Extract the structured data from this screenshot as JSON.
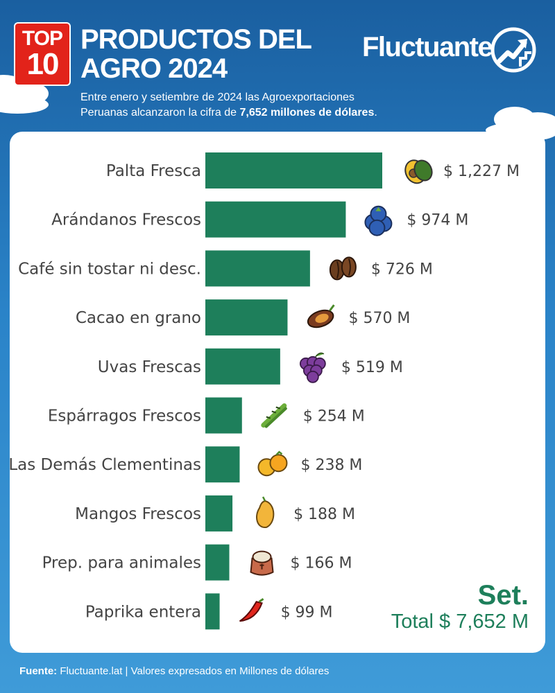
{
  "badge": {
    "top": "TOP",
    "num": "10"
  },
  "header": {
    "title_line1": "PRODUCTOS DEL",
    "title_line2": "AGRO 2024",
    "subtitle_line1": "Entre enero y setiembre de 2024 las Agroexportaciones",
    "subtitle_line2_prefix": "Peruanas alcanzaron la cifra de ",
    "subtitle_line2_bold": "7,652 millones de dólares",
    "subtitle_line2_suffix": ".",
    "brand": "Fluctuante"
  },
  "total": {
    "period": "Set.",
    "value": "Total $ 7,652 M"
  },
  "footer": {
    "label": "Fuente:",
    "text": " Fluctuante.lat | Valores expresados en Millones de dólares"
  },
  "colors": {
    "bar": "#1e7f5b",
    "accent": "#1e7f5b",
    "label": "#444444",
    "badge": "#e2231a"
  },
  "chart_data": {
    "type": "bar",
    "orientation": "horizontal",
    "categories": [
      "Palta Fresca",
      "Arándanos Frescos",
      "Café sin tostar ni desc.",
      "Cacao en grano",
      "Uvas Frescas",
      "Espárragos Frescos",
      "Las Demás Clementinas",
      "Mangos Frescos",
      "Prep. para animales",
      "Paprika entera"
    ],
    "values": [
      1227,
      974,
      726,
      570,
      519,
      254,
      238,
      188,
      166,
      99
    ],
    "value_labels": [
      "$ 1,227 M",
      "$ 974 M",
      "$ 726 M",
      "$ 570 M",
      "$ 519 M",
      "$ 254 M",
      "$ 238 M",
      "$ 188 M",
      "$ 166 M",
      "$ 99 M"
    ],
    "icons": [
      "avocado-icon",
      "blueberries-icon",
      "coffee-beans-icon",
      "cacao-pod-icon",
      "grapes-icon",
      "asparagus-icon",
      "clementines-icon",
      "mango-icon",
      "animal-feed-jar-icon",
      "chili-pepper-icon"
    ],
    "xlim": [
      0,
      1227
    ],
    "grid": false,
    "legend": "none"
  }
}
